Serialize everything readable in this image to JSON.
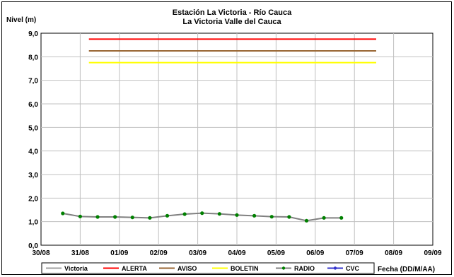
{
  "chart_data": {
    "type": "line",
    "title": "Estación La Victoria - Río Cauca",
    "subtitle": "La Victoria Valle del Cauca",
    "ylabel": "Nivel (m)",
    "xlabel": "Fecha (DD/M/AA)",
    "ylim": [
      0,
      9
    ],
    "yticks": [
      "0,0",
      "1,0",
      "2,0",
      "3,0",
      "4,0",
      "5,0",
      "6,0",
      "7,0",
      "8,0",
      "9,0"
    ],
    "xlim": [
      0,
      9
    ],
    "xticks": [
      "30/08",
      "31/08",
      "01/09",
      "02/09",
      "03/09",
      "04/09",
      "05/09",
      "06/09",
      "07/09",
      "08/09",
      "09/09"
    ],
    "grid": true,
    "legend_position": "bottom",
    "threshold_series": [
      {
        "name": "ALERTA",
        "color": "#ff0000",
        "y": 8.75,
        "x_start": 1.1,
        "x_end": 7.7
      },
      {
        "name": "AVISO",
        "color": "#996633",
        "y": 8.25,
        "x_start": 1.1,
        "x_end": 7.7
      },
      {
        "name": "BOLETIN",
        "color": "#ffff00",
        "y": 7.75,
        "x_start": 1.1,
        "x_end": 7.7
      }
    ],
    "series": [
      {
        "name": "Victoria",
        "color": "#a0a0a0"
      },
      {
        "name": "RADIO",
        "color": "#808080",
        "marker_color": "#008000",
        "x": [
          0.5,
          0.9,
          1.3,
          1.7,
          2.1,
          2.5,
          2.9,
          3.3,
          3.7,
          4.1,
          4.5,
          4.9,
          5.3,
          5.7,
          6.1,
          6.5,
          6.9
        ],
        "y": [
          1.35,
          1.22,
          1.2,
          1.2,
          1.18,
          1.16,
          1.25,
          1.32,
          1.36,
          1.33,
          1.28,
          1.25,
          1.21,
          1.2,
          1.04,
          1.16,
          1.16
        ]
      },
      {
        "name": "CVC",
        "color": "#3333cc"
      }
    ]
  }
}
